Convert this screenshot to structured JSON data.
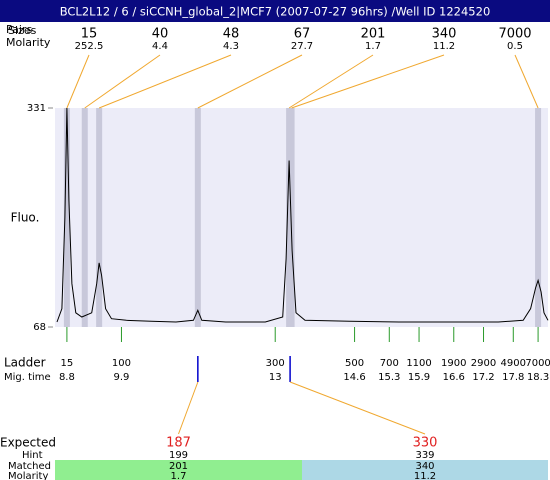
{
  "chart_data": {
    "type": "line",
    "title": "BCL2L12 / 6 / siCCNH_global_2|MCF7 (2007-07-27 96hrs) /Well ID 1224520",
    "y_label": "Fluo.",
    "ylim": [
      68,
      331
    ],
    "yticks": [
      68,
      331
    ],
    "xlim": [
      8.56,
      18.5
    ],
    "color": "#000000",
    "x": [
      8.6,
      8.7,
      8.76,
      8.8,
      8.84,
      8.9,
      8.98,
      9.1,
      9.3,
      9.4,
      9.45,
      9.5,
      9.58,
      9.7,
      10.0,
      10.5,
      11.0,
      11.35,
      11.44,
      11.52,
      12.0,
      12.8,
      13.15,
      13.22,
      13.28,
      13.34,
      13.42,
      13.6,
      14.5,
      15.5,
      16.5,
      17.5,
      18.0,
      18.15,
      18.25,
      18.3,
      18.36,
      18.42,
      18.5
    ],
    "values": [
      74,
      90,
      200,
      331,
      220,
      120,
      85,
      80,
      85,
      120,
      145,
      130,
      90,
      78,
      76,
      75,
      74,
      76,
      88,
      76,
      74,
      74,
      80,
      150,
      268,
      160,
      85,
      76,
      75,
      74,
      74,
      74,
      76,
      90,
      115,
      124,
      110,
      85,
      76
    ],
    "peaks": {
      "header_pairs": "Pairs",
      "header_size": "Sizes",
      "header_molarity": "Molarity",
      "sizes": [
        15,
        40,
        48,
        67,
        201,
        340,
        7000
      ],
      "molarities": [
        252.5,
        4.4,
        4.3,
        27.7,
        1.7,
        11.2,
        0.5
      ],
      "mig_times": [
        8.8,
        9.16,
        9.45,
        11.44,
        13.28,
        13.33,
        18.3
      ]
    },
    "ladder": {
      "label": "Ladder",
      "time_label": "Mig. time",
      "sizes": [
        15,
        100,
        300,
        500,
        700,
        1100,
        1900,
        2900,
        4900,
        7000
      ],
      "mig_times": [
        8.8,
        9.9,
        13,
        14.6,
        15.3,
        15.9,
        16.6,
        17.2,
        17.8,
        18.3
      ]
    },
    "expected": {
      "label": "Expected",
      "hint_label": "Hint",
      "matched_label": "Matched",
      "molarity_label": "Molarity",
      "values": [
        187,
        330
      ],
      "mig_times": [
        11.44,
        13.3
      ],
      "hint": [
        199,
        339
      ],
      "matched": [
        201,
        340
      ],
      "molarity": [
        1.7,
        11.2
      ]
    }
  }
}
